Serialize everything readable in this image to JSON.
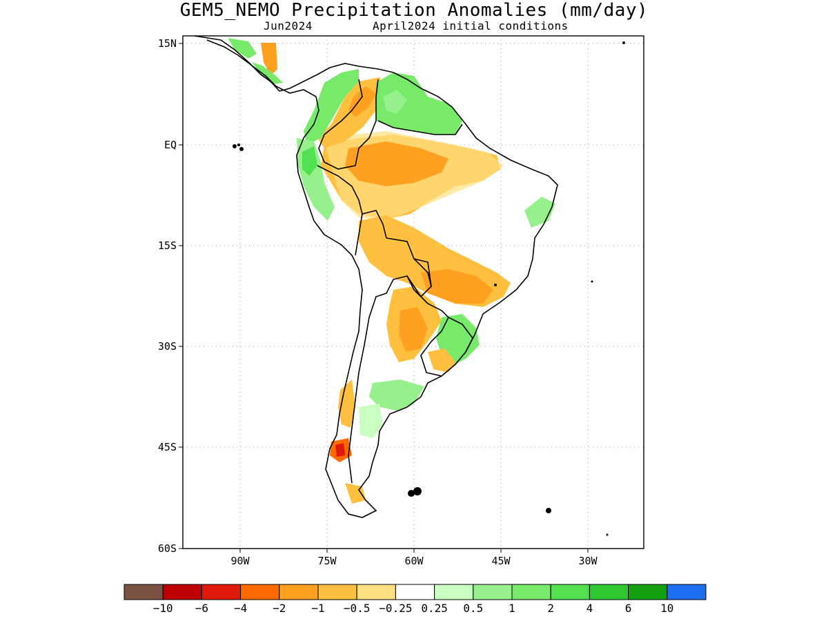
{
  "title": "GEM5_NEMO Precipitation Anomalies (mm/day)",
  "subtitle_left": "Jun2024",
  "subtitle_right": "April2024 initial conditions",
  "map": {
    "lat_labels": [
      "15N",
      "EQ",
      "15S",
      "30S",
      "45S",
      "60S"
    ],
    "lon_labels": [
      "90W",
      "75W",
      "60W",
      "45W",
      "30W"
    ],
    "colorbar": {
      "colors": [
        "#7a5243",
        "#c00000",
        "#e01a0a",
        "#ff6a00",
        "#ffa020",
        "#ffc040",
        "#ffe080",
        "#ffffff",
        "#c8ffc0",
        "#96f08c",
        "#78ea6a",
        "#50e050",
        "#30c830",
        "#10a010",
        "#1e6ef0"
      ],
      "labels": [
        "-10",
        "-6",
        "-4",
        "-2",
        "-1",
        "-0.5",
        "-0.25",
        "0.25",
        "0.5",
        "1",
        "2",
        "4",
        "6",
        "10"
      ]
    }
  }
}
